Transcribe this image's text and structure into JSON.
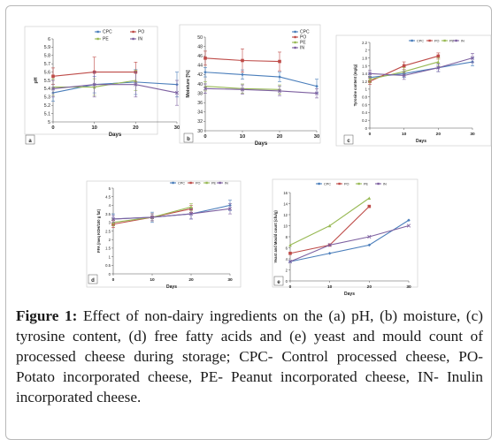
{
  "figure": {
    "caption_label": "Figure 1:",
    "caption_text": "Effect of non-dairy ingredients on the (a) pH, (b) moisture, (c) tyrosine content, (d) free fatty acids and (e) yeast and mould count of processed cheese during storage; CPC- Control processed cheese, PO- Potato incorporated cheese, PE- Peanut incorporated cheese, IN- Inulin incorporated cheese."
  },
  "colors": {
    "CPC": "#4a7ebb",
    "PO": "#be4b48",
    "PE": "#98b954",
    "IN": "#7d60a0"
  },
  "chart_data": [
    {
      "panel": "a",
      "type": "line",
      "ylabel": "pH",
      "xlabel": "Days",
      "x": [
        0,
        10,
        20,
        30
      ],
      "xticks": [
        "0",
        "10",
        "20",
        "30"
      ],
      "ylim": [
        5,
        6
      ],
      "yticks": [
        "5",
        "5.1",
        "5.2",
        "5.3",
        "5.4",
        "5.5",
        "5.6",
        "5.7",
        "5.8",
        "5.9",
        "6"
      ],
      "legend": [
        "CPC",
        "PO",
        "PE",
        "IN"
      ],
      "series": [
        {
          "name": "CPC",
          "values": [
            5.35,
            5.45,
            5.48,
            5.45
          ],
          "err": [
            0.1,
            0.1,
            0.15,
            0.15
          ]
        },
        {
          "name": "PO",
          "values": [
            5.55,
            5.6,
            5.6,
            null
          ],
          "err": [
            0.1,
            0.18,
            0.12,
            0
          ]
        },
        {
          "name": "PE",
          "values": [
            5.42,
            5.42,
            5.5,
            null
          ],
          "err": [
            0.1,
            0.1,
            0.12,
            0
          ]
        },
        {
          "name": "IN",
          "values": [
            5.4,
            5.45,
            5.45,
            5.35
          ],
          "err": [
            0.1,
            0.15,
            0.15,
            0.15
          ]
        }
      ]
    },
    {
      "panel": "b",
      "type": "line",
      "ylabel": "Moisture [%]",
      "xlabel": "Days",
      "x": [
        0,
        10,
        20,
        30
      ],
      "xticks": [
        "0",
        "10",
        "20",
        "30"
      ],
      "ylim": [
        30,
        50
      ],
      "yticks": [
        "30",
        "32",
        "34",
        "36",
        "38",
        "40",
        "42",
        "44",
        "46",
        "48",
        "50"
      ],
      "legend": [
        "CPC",
        "PO",
        "PE",
        "IN"
      ],
      "series": [
        {
          "name": "CPC",
          "values": [
            42.5,
            42,
            41.5,
            39.5
          ],
          "err": [
            1,
            1,
            1,
            1.5
          ]
        },
        {
          "name": "PO",
          "values": [
            45.5,
            45,
            44.8,
            null
          ],
          "err": [
            1.5,
            2.5,
            2,
            0
          ]
        },
        {
          "name": "PE",
          "values": [
            39.5,
            39,
            38.8,
            null
          ],
          "err": [
            1,
            1,
            1,
            0
          ]
        },
        {
          "name": "IN",
          "values": [
            39,
            38.8,
            38.5,
            38
          ],
          "err": [
            1,
            1,
            1,
            1
          ]
        }
      ]
    },
    {
      "panel": "c",
      "type": "line",
      "ylabel": "Tyrosine content (mg/g)",
      "xlabel": "Days",
      "x": [
        0,
        10,
        20,
        30
      ],
      "xticks": [
        "0",
        "10",
        "20",
        "30"
      ],
      "ylim": [
        0,
        2.2
      ],
      "yticks": [
        "0",
        "0.2",
        "0.4",
        "0.6",
        "0.8",
        "1",
        "1.2",
        "1.4",
        "1.6",
        "1.8",
        "2",
        "2.2"
      ],
      "legend": [
        "CPC",
        "PO",
        "PE",
        "IN"
      ],
      "series": [
        {
          "name": "CPC",
          "values": [
            1.3,
            1.4,
            1.55,
            1.7
          ],
          "err": [
            0.1,
            0.1,
            0.1,
            0.1
          ]
        },
        {
          "name": "PO",
          "values": [
            1.2,
            1.6,
            1.85,
            null
          ],
          "err": [
            0.08,
            0.1,
            0.08,
            0
          ]
        },
        {
          "name": "PE",
          "values": [
            1.25,
            1.45,
            1.7,
            null
          ],
          "err": [
            0.08,
            0.1,
            0.1,
            0
          ]
        },
        {
          "name": "IN",
          "values": [
            1.4,
            1.35,
            1.55,
            1.8
          ],
          "err": [
            0.08,
            0.1,
            0.1,
            0.12
          ]
        }
      ]
    },
    {
      "panel": "d",
      "type": "line",
      "ylabel": "FFA (meq KOH/100 g fat)",
      "xlabel": "Days",
      "x": [
        0,
        10,
        20,
        30
      ],
      "xticks": [
        "0",
        "10",
        "20",
        "30"
      ],
      "ylim": [
        0,
        5
      ],
      "yticks": [
        "0",
        "0.5",
        "1",
        "1.5",
        "2",
        "2.5",
        "3",
        "3.5",
        "4",
        "4.5",
        "5"
      ],
      "legend": [
        "CPC",
        "PO",
        "PE",
        "IN"
      ],
      "series": [
        {
          "name": "CPC",
          "values": [
            3.2,
            3.3,
            3.5,
            4.0
          ],
          "err": [
            0.3,
            0.3,
            0.3,
            0.3
          ]
        },
        {
          "name": "PO",
          "values": [
            2.9,
            3.3,
            3.8,
            null
          ],
          "err": [
            0.2,
            0.2,
            0.2,
            0
          ]
        },
        {
          "name": "PE",
          "values": [
            3.0,
            3.3,
            3.9,
            null
          ],
          "err": [
            0.2,
            0.2,
            0.2,
            0
          ]
        },
        {
          "name": "IN",
          "values": [
            3.2,
            3.3,
            3.5,
            3.8
          ],
          "err": [
            0.2,
            0.2,
            0.3,
            0.3
          ]
        }
      ]
    },
    {
      "panel": "e",
      "type": "line",
      "ylabel": "Yeast and Mould count (cfu/g)",
      "xlabel": "Days",
      "x": [
        0,
        10,
        20,
        30
      ],
      "xticks": [
        "0",
        "10",
        "20",
        "30"
      ],
      "ylim": [
        0,
        16
      ],
      "yticks": [
        "0",
        "2",
        "4",
        "6",
        "8",
        "10",
        "12",
        "14",
        "16"
      ],
      "legend": [
        "CPC",
        "PO",
        "PE",
        "IN"
      ],
      "series": [
        {
          "name": "CPC",
          "values": [
            3.5,
            5,
            6.5,
            11
          ],
          "err": [
            0,
            0,
            0,
            0
          ]
        },
        {
          "name": "PO",
          "values": [
            5,
            6.5,
            13.5,
            null
          ],
          "err": [
            0,
            0,
            0,
            0
          ]
        },
        {
          "name": "PE",
          "values": [
            6.5,
            10,
            15,
            null
          ],
          "err": [
            0,
            0,
            0,
            0
          ]
        },
        {
          "name": "IN",
          "values": [
            3.5,
            6.5,
            8,
            10
          ],
          "err": [
            0,
            0,
            0,
            0
          ]
        }
      ]
    }
  ]
}
